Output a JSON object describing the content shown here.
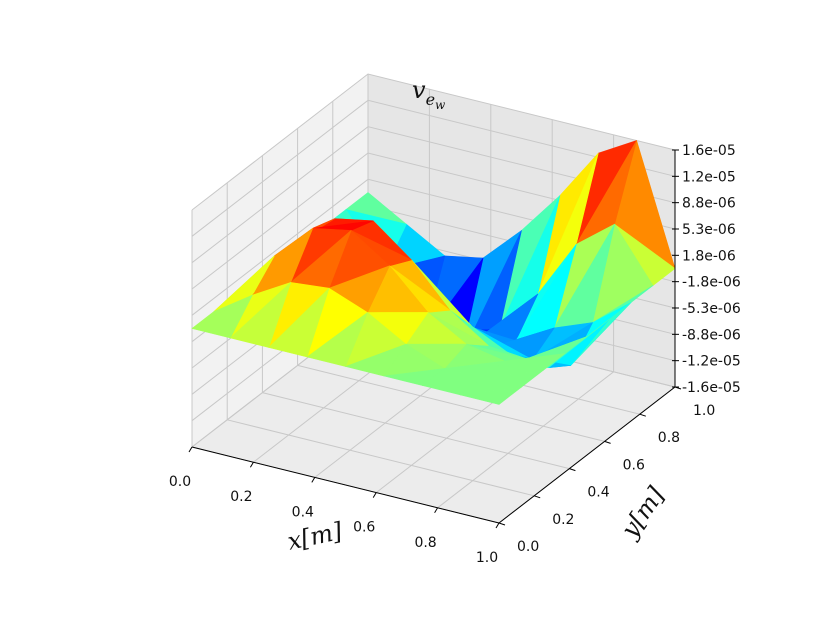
{
  "chart_data": {
    "type": "surface3d",
    "title": "v",
    "title_subscript": "e",
    "title_subsubscript": "w",
    "xlabel": "x[m]",
    "ylabel": "y[m]",
    "zlabel": "",
    "colormap": "jet",
    "xlim": [
      0.0,
      1.0
    ],
    "ylim": [
      0.0,
      1.0
    ],
    "zlim": [
      -1.6e-05,
      1.6e-05
    ],
    "x_ticks": [
      "0.0",
      "0.2",
      "0.4",
      "0.6",
      "0.8",
      "1.0"
    ],
    "y_ticks": [
      "0.0",
      "0.2",
      "0.4",
      "0.6",
      "0.8",
      "1.0"
    ],
    "z_ticks": [
      "-1.6e-05",
      "-1.2e-05",
      "-8.8e-06",
      "-5.3e-06",
      "-1.8e-06",
      "1.8e-06",
      "5.3e-06",
      "8.8e-06",
      "1.2e-05",
      "1.6e-05"
    ],
    "x_grid": [
      0.0,
      0.125,
      0.25,
      0.375,
      0.5,
      0.625,
      0.75,
      0.875,
      1.0
    ],
    "y_grid": [
      0.0,
      0.125,
      0.25,
      0.375,
      0.5,
      0.625,
      0.75,
      0.875,
      1.0
    ],
    "z_values": [
      [
        0,
        0,
        0,
        0,
        0,
        0,
        0,
        0,
        0
      ],
      [
        0,
        3.5e-06,
        6.5e-06,
        7e-06,
        5e-06,
        2e-06,
        0,
        0,
        0
      ],
      [
        0,
        6.5e-06,
        1.15e-05,
        1.25e-05,
        9e-06,
        4e-06,
        1e-06,
        0,
        0
      ],
      [
        0,
        6e-06,
        1.05e-05,
        1.15e-05,
        7.5e-06,
        2e-06,
        -1.5e-06,
        -2e-06,
        0
      ],
      [
        0,
        2.5e-06,
        4e-06,
        3.5e-06,
        1e-06,
        -2.5e-06,
        -5e-06,
        -5.5e-06,
        0
      ],
      [
        0,
        -1e-06,
        -2.5e-06,
        -4e-06,
        -5.5e-06,
        -7.5e-06,
        -8e-06,
        -7.5e-06,
        0
      ],
      [
        0,
        -4e-06,
        -9e-06,
        -1.05e-05,
        -1e-05,
        -9e-06,
        -6e-06,
        -4e-06,
        0
      ],
      [
        0,
        -7e-06,
        -1.5e-05,
        -1.6e-05,
        -1.1e-05,
        -5e-06,
        3e-06,
        7e-06,
        0
      ],
      [
        0,
        -3e-06,
        -6e-06,
        -5e-06,
        0,
        6e-06,
        1.3e-05,
        1.6e-05,
        0
      ]
    ],
    "grid": true,
    "pane_color": "#ebebeb",
    "grid_color": "#c8c8c8"
  }
}
